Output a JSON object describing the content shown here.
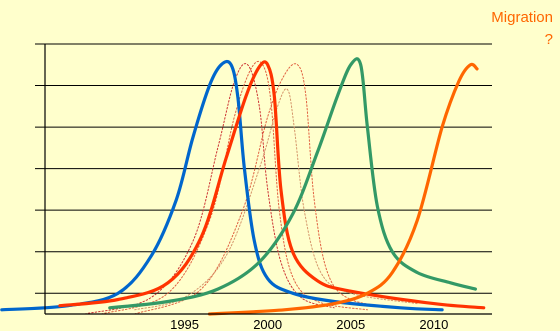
{
  "chart_data": {
    "type": "line",
    "title": "",
    "xlabel": "",
    "ylabel": "",
    "xlim": [
      1986,
      2013.5
    ],
    "ylim": [
      0,
      1.3
    ],
    "x_ticks": [
      1995,
      2000,
      2005,
      2010
    ],
    "x_tick_labels": [
      "1995",
      "2000",
      "2005",
      "2010"
    ],
    "y_gridlines": [
      0.1,
      0.3,
      0.5,
      0.7,
      0.9,
      1.1,
      1.3
    ],
    "grid": true,
    "legend": "none",
    "annotations": [
      {
        "text": "Migration",
        "color": "#ff6600"
      },
      {
        "text": "?",
        "color": "#ff6600"
      }
    ],
    "series": [
      {
        "color": "#0066cc",
        "style": "solid",
        "points": [
          [
            1984,
            0.02
          ],
          [
            1988,
            0.04
          ],
          [
            1991,
            0.1
          ],
          [
            1993,
            0.28
          ],
          [
            1994.5,
            0.55
          ],
          [
            1995.5,
            0.85
          ],
          [
            1996.5,
            1.1
          ],
          [
            1997.2,
            1.2
          ],
          [
            1997.8,
            1.2
          ],
          [
            1998.2,
            1.05
          ],
          [
            1998.6,
            0.7
          ],
          [
            1999.2,
            0.35
          ],
          [
            2000,
            0.17
          ],
          [
            2001.5,
            0.1
          ],
          [
            2004,
            0.06
          ],
          [
            2008,
            0.03
          ],
          [
            2010.5,
            0.02
          ]
        ]
      },
      {
        "color": "#ff3300",
        "style": "solid",
        "points": [
          [
            1987.5,
            0.04
          ],
          [
            1991,
            0.07
          ],
          [
            1994,
            0.15
          ],
          [
            1996,
            0.37
          ],
          [
            1997.5,
            0.75
          ],
          [
            1998.7,
            1.05
          ],
          [
            1999.5,
            1.19
          ],
          [
            2000,
            1.2
          ],
          [
            2000.4,
            1.05
          ],
          [
            2000.8,
            0.6
          ],
          [
            2001.5,
            0.3
          ],
          [
            2003,
            0.16
          ],
          [
            2005,
            0.11
          ],
          [
            2010,
            0.05
          ],
          [
            2013,
            0.03
          ]
        ]
      },
      {
        "color": "#339966",
        "style": "solid",
        "points": [
          [
            1990.5,
            0.03
          ],
          [
            1994,
            0.06
          ],
          [
            1997,
            0.12
          ],
          [
            1999.5,
            0.25
          ],
          [
            2001.5,
            0.48
          ],
          [
            2003,
            0.78
          ],
          [
            2004.2,
            1.05
          ],
          [
            2005,
            1.2
          ],
          [
            2005.6,
            1.2
          ],
          [
            2006,
            0.9
          ],
          [
            2006.6,
            0.52
          ],
          [
            2007.5,
            0.3
          ],
          [
            2009,
            0.2
          ],
          [
            2011,
            0.15
          ],
          [
            2012.5,
            0.12
          ]
        ]
      },
      {
        "color": "#ff6600",
        "style": "solid",
        "points": [
          [
            1996.5,
            0.0
          ],
          [
            2001,
            0.02
          ],
          [
            2004,
            0.05
          ],
          [
            2006,
            0.1
          ],
          [
            2007.5,
            0.2
          ],
          [
            2009,
            0.45
          ],
          [
            2010.5,
            0.9
          ],
          [
            2011.5,
            1.12
          ],
          [
            2012.2,
            1.2
          ],
          [
            2012.6,
            1.18
          ]
        ]
      },
      {
        "color": "#cc3333",
        "style": "dotted",
        "points": [
          [
            1989,
            0.0
          ],
          [
            1993,
            0.08
          ],
          [
            1995.5,
            0.35
          ],
          [
            1997,
            0.8
          ],
          [
            1998,
            1.12
          ],
          [
            1998.8,
            1.2
          ],
          [
            1999.5,
            1.0
          ],
          [
            2000,
            0.6
          ],
          [
            2000.8,
            0.25
          ],
          [
            2002,
            0.08
          ],
          [
            2004,
            0.03
          ]
        ]
      },
      {
        "color": "#e06040",
        "style": "dotted",
        "points": [
          [
            1990,
            0.0
          ],
          [
            1994,
            0.1
          ],
          [
            1996.5,
            0.45
          ],
          [
            1998,
            0.95
          ],
          [
            1999,
            1.18
          ],
          [
            1999.7,
            1.2
          ],
          [
            2000.2,
            1.02
          ],
          [
            2000.7,
            0.5
          ],
          [
            2001.5,
            0.18
          ],
          [
            2003,
            0.06
          ],
          [
            2006,
            0.02
          ]
        ]
      },
      {
        "color": "#e06040",
        "style": "dotted",
        "points": [
          [
            1992,
            0.0
          ],
          [
            1996,
            0.12
          ],
          [
            1998.5,
            0.5
          ],
          [
            2000,
            0.95
          ],
          [
            2001,
            1.15
          ],
          [
            2001.8,
            1.2
          ],
          [
            2002.3,
            1.05
          ],
          [
            2002.8,
            0.55
          ],
          [
            2003.6,
            0.2
          ],
          [
            2005,
            0.07
          ],
          [
            2008,
            0.03
          ]
        ]
      },
      {
        "color": "#d4956a",
        "style": "dotted",
        "points": [
          [
            1992,
            0.02
          ],
          [
            1995,
            0.08
          ],
          [
            1997.5,
            0.28
          ],
          [
            1999.5,
            0.7
          ],
          [
            2000.6,
            1.0
          ],
          [
            2001.2,
            1.08
          ],
          [
            2001.6,
            0.9
          ],
          [
            2002.2,
            0.5
          ],
          [
            2003.2,
            0.2
          ],
          [
            2005,
            0.1
          ],
          [
            2009,
            0.05
          ]
        ]
      }
    ]
  }
}
